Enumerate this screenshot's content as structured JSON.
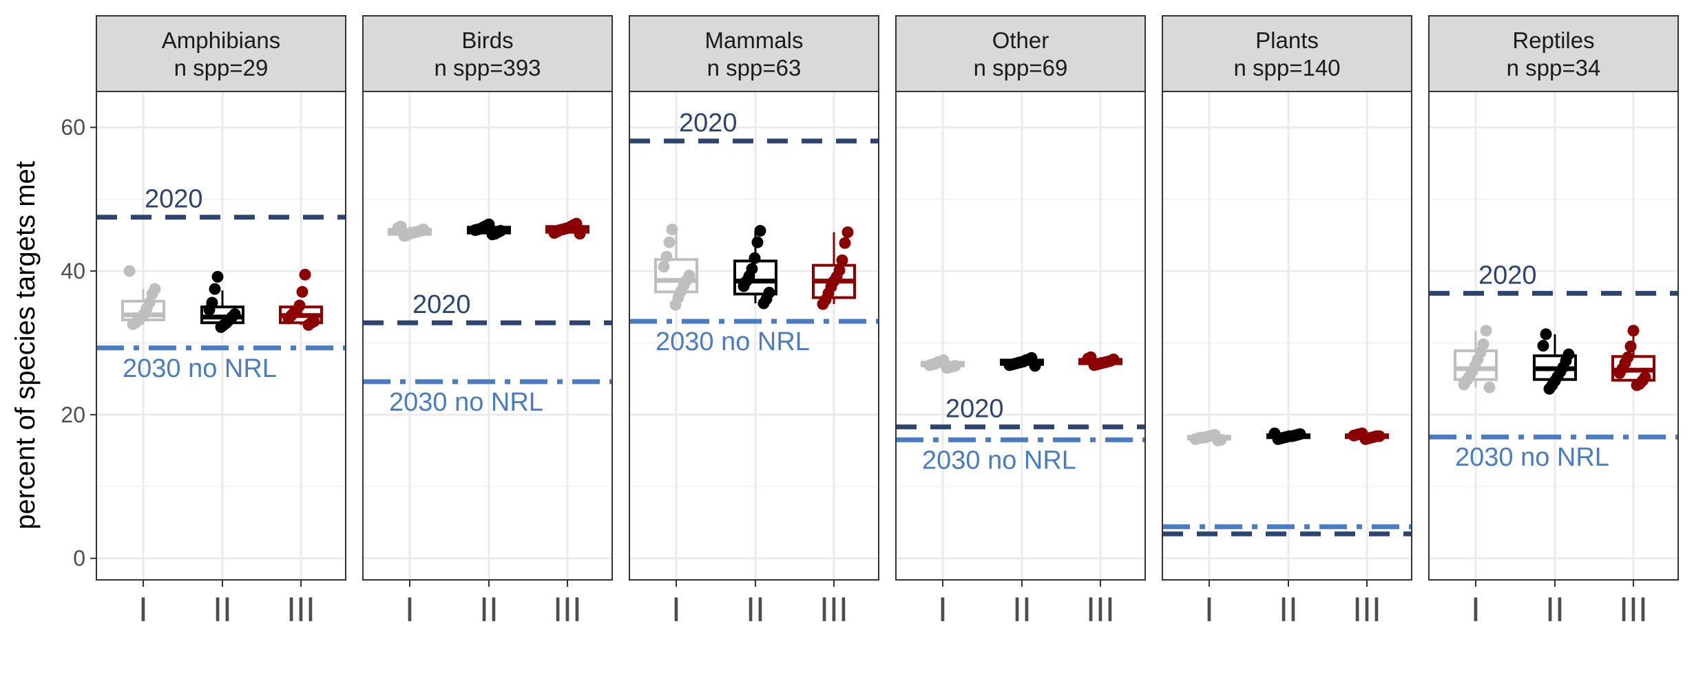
{
  "chart_data": {
    "type": "box",
    "ylabel": "percent of species targets met",
    "ylim": [
      -3,
      65
    ],
    "yticks": [
      0,
      20,
      40,
      60
    ],
    "categories": [
      "I",
      "II",
      "III"
    ],
    "grid": true,
    "colors": {
      "I": "#bebebe",
      "II": "#000000",
      "III": "#8b0000",
      "line_2020": "#2c4470",
      "line_2030": "#4a7cc4",
      "strip_bg": "#d9d9d9",
      "grid": "#ebebeb",
      "tick_text": "#4d4d4d"
    },
    "panels": [
      {
        "title": "Amphibians",
        "subtitle": "n spp=29",
        "ref_2020": {
          "value": 47.5,
          "label": "2020"
        },
        "ref_2030": {
          "value": 29.3,
          "label": "2030 no NRL"
        },
        "boxes": [
          {
            "category": "I",
            "q1": 33.2,
            "median": 33.9,
            "q3": 35.8,
            "min": 32.5,
            "max": 37.5,
            "points": [
              40.0,
              37.5,
              36.8,
              35.6,
              34.8,
              34.0,
              33.6,
              33.2,
              32.8,
              32.6
            ]
          },
          {
            "category": "II",
            "q1": 32.8,
            "median": 33.6,
            "q3": 35.0,
            "min": 32.2,
            "max": 37.3,
            "points": [
              39.2,
              37.5,
              35.6,
              34.6,
              34.0,
              33.6,
              33.2,
              32.8,
              32.5,
              32.2
            ]
          },
          {
            "category": "III",
            "q1": 32.8,
            "median": 33.8,
            "q3": 35.0,
            "min": 32.5,
            "max": 35.8,
            "points": [
              39.5,
              37.1,
              35.2,
              34.5,
              34.2,
              33.8,
              33.4,
              33.0,
              32.8,
              32.5
            ]
          }
        ]
      },
      {
        "title": "Birds",
        "subtitle": "n spp=393",
        "ref_2020": {
          "value": 32.8,
          "label": "2020"
        },
        "ref_2030": {
          "value": 24.6,
          "label": "2030 no NRL"
        },
        "boxes": [
          {
            "category": "I",
            "q1": 45.1,
            "median": 45.5,
            "q3": 45.8,
            "min": 44.9,
            "max": 46.2,
            "points": [
              46.2,
              46.0,
              45.8,
              45.6,
              45.5,
              45.4,
              45.3,
              45.2,
              45.0,
              44.9
            ]
          },
          {
            "category": "II",
            "q1": 45.3,
            "median": 45.8,
            "q3": 46.1,
            "min": 45.1,
            "max": 46.5,
            "points": [
              46.5,
              46.3,
              46.1,
              45.9,
              45.8,
              45.7,
              45.6,
              45.4,
              45.2,
              45.1
            ]
          },
          {
            "category": "III",
            "q1": 45.4,
            "median": 45.9,
            "q3": 46.2,
            "min": 45.2,
            "max": 46.6,
            "points": [
              46.6,
              46.4,
              46.2,
              46.0,
              45.9,
              45.8,
              45.7,
              45.5,
              45.3,
              45.2
            ]
          }
        ]
      },
      {
        "title": "Mammals",
        "subtitle": "n spp=63",
        "ref_2020": {
          "value": 58.1,
          "label": "2020"
        },
        "ref_2030": {
          "value": 33.0,
          "label": "2030 no NRL"
        },
        "boxes": [
          {
            "category": "I",
            "q1": 37.1,
            "median": 38.7,
            "q3": 41.6,
            "min": 35.3,
            "max": 45.8,
            "points": [
              45.8,
              44.0,
              42.0,
              40.6,
              39.4,
              38.7,
              38.0,
              37.2,
              36.3,
              35.3
            ]
          },
          {
            "category": "II",
            "q1": 36.8,
            "median": 38.6,
            "q3": 41.4,
            "min": 35.5,
            "max": 45.6,
            "points": [
              45.6,
              44.0,
              41.8,
              40.3,
              39.3,
              38.6,
              37.9,
              37.0,
              36.1,
              35.5
            ]
          },
          {
            "category": "III",
            "q1": 36.3,
            "median": 38.6,
            "q3": 40.8,
            "min": 35.4,
            "max": 45.4,
            "points": [
              45.4,
              43.9,
              41.5,
              40.1,
              39.2,
              38.6,
              37.8,
              36.9,
              36.0,
              35.4
            ]
          }
        ]
      },
      {
        "title": "Other",
        "subtitle": "n spp=69",
        "ref_2020": {
          "value": 18.3,
          "label": "2020"
        },
        "ref_2030": {
          "value": 16.5,
          "label": "2030 no NRL"
        },
        "boxes": [
          {
            "category": "I",
            "q1": 26.8,
            "median": 27.0,
            "q3": 27.3,
            "min": 26.5,
            "max": 27.6,
            "points": [
              27.6,
              27.4,
              27.3,
              27.1,
              27.0,
              26.9,
              26.8,
              26.7,
              26.6,
              26.5
            ]
          },
          {
            "category": "II",
            "q1": 27.0,
            "median": 27.3,
            "q3": 27.6,
            "min": 26.8,
            "max": 27.9,
            "points": [
              27.9,
              27.7,
              27.6,
              27.4,
              27.3,
              27.2,
              27.1,
              27.0,
              26.9,
              26.8
            ]
          },
          {
            "category": "III",
            "q1": 27.1,
            "median": 27.4,
            "q3": 27.7,
            "min": 26.9,
            "max": 28.0,
            "points": [
              28.0,
              27.8,
              27.7,
              27.5,
              27.4,
              27.3,
              27.2,
              27.1,
              27.0,
              26.9
            ]
          }
        ]
      },
      {
        "title": "Plants",
        "subtitle": "n spp=140",
        "ref_2020": {
          "value": 3.4,
          "label": ""
        },
        "ref_2030": {
          "value": 4.4,
          "label": ""
        },
        "boxes": [
          {
            "category": "I",
            "q1": 16.6,
            "median": 16.8,
            "q3": 17.0,
            "min": 16.4,
            "max": 17.2,
            "points": [
              17.2,
              17.1,
              17.0,
              16.9,
              16.8,
              16.8,
              16.7,
              16.6,
              16.5,
              16.4
            ]
          },
          {
            "category": "II",
            "q1": 16.8,
            "median": 17.0,
            "q3": 17.2,
            "min": 16.6,
            "max": 17.4,
            "points": [
              17.4,
              17.3,
              17.2,
              17.1,
              17.0,
              17.0,
              16.9,
              16.8,
              16.7,
              16.6
            ]
          },
          {
            "category": "III",
            "q1": 16.8,
            "median": 17.0,
            "q3": 17.2,
            "min": 16.6,
            "max": 17.4,
            "points": [
              17.4,
              17.3,
              17.2,
              17.1,
              17.0,
              17.0,
              16.9,
              16.8,
              16.7,
              16.6
            ]
          }
        ]
      },
      {
        "title": "Reptiles",
        "subtitle": "n spp=34",
        "ref_2020": {
          "value": 36.9,
          "label": "2020"
        },
        "ref_2030": {
          "value": 16.9,
          "label": "2030 no NRL"
        },
        "boxes": [
          {
            "category": "I",
            "q1": 24.9,
            "median": 26.4,
            "q3": 28.9,
            "min": 23.8,
            "max": 31.7,
            "points": [
              31.7,
              29.8,
              28.7,
              27.7,
              26.8,
              26.0,
              25.3,
              24.8,
              24.2,
              23.8
            ]
          },
          {
            "category": "II",
            "q1": 24.9,
            "median": 26.4,
            "q3": 28.2,
            "min": 23.6,
            "max": 31.2,
            "points": [
              31.2,
              29.6,
              28.4,
              27.5,
              26.6,
              26.0,
              25.3,
              24.7,
              24.1,
              23.6
            ]
          },
          {
            "category": "III",
            "q1": 24.8,
            "median": 26.2,
            "q3": 28.1,
            "min": 24.1,
            "max": 31.7,
            "points": [
              31.7,
              29.5,
              28.0,
              27.2,
              26.4,
              25.8,
              25.2,
              24.7,
              24.3,
              24.1
            ]
          }
        ]
      }
    ]
  }
}
